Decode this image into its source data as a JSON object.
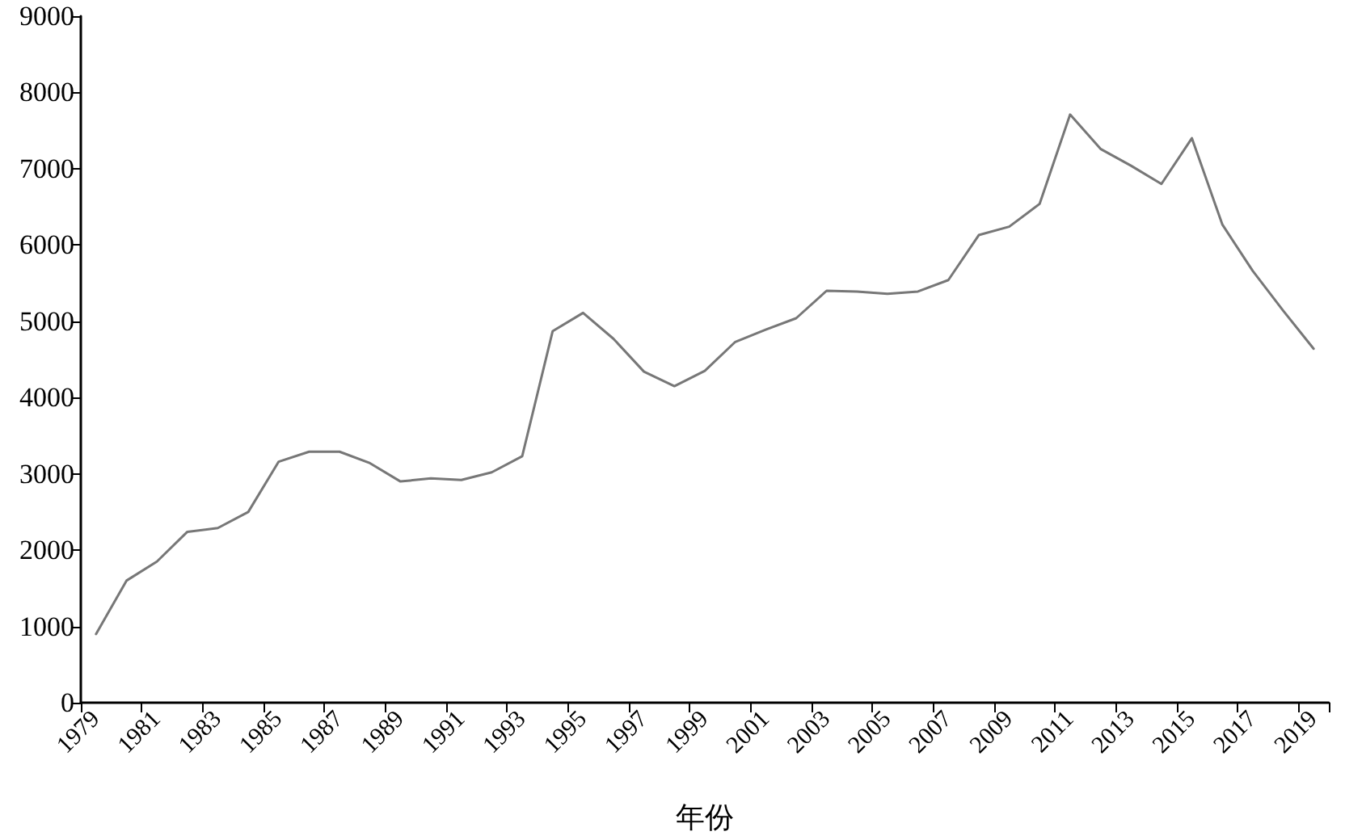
{
  "chart_data": {
    "type": "line",
    "xlabel": "年份",
    "categories": [
      "1979",
      null,
      "1981",
      null,
      "1983",
      null,
      "1985",
      null,
      "1987",
      null,
      "1989",
      null,
      "1991",
      null,
      "1993",
      null,
      "1995",
      null,
      "1997",
      null,
      "1999",
      null,
      "2001",
      null,
      "2003",
      null,
      "2005",
      null,
      "2007",
      null,
      "2009",
      null,
      "2011",
      null,
      "2013",
      null,
      "2015",
      null,
      "2017",
      null,
      "2019"
    ],
    "series": [
      {
        "color": "#777777",
        "values": [
          900,
          1600,
          1850,
          2240,
          2290,
          2500,
          3160,
          3290,
          3290,
          3140,
          2900,
          2940,
          2920,
          3020,
          3230,
          4870,
          5110,
          4770,
          4340,
          4150,
          4350,
          4730,
          4890,
          5040,
          5400,
          5390,
          5360,
          5390,
          5540,
          6130,
          6240,
          6540,
          7710,
          7260,
          7040,
          6800,
          7400,
          6270,
          5660,
          5140,
          4640
        ]
      }
    ],
    "ylim": [
      0,
      9000
    ],
    "yticks": [
      0,
      1000,
      2000,
      3000,
      4000,
      5000,
      6000,
      7000,
      8000,
      9000
    ],
    "grid": false,
    "marker": "none",
    "line_style": "solid"
  }
}
